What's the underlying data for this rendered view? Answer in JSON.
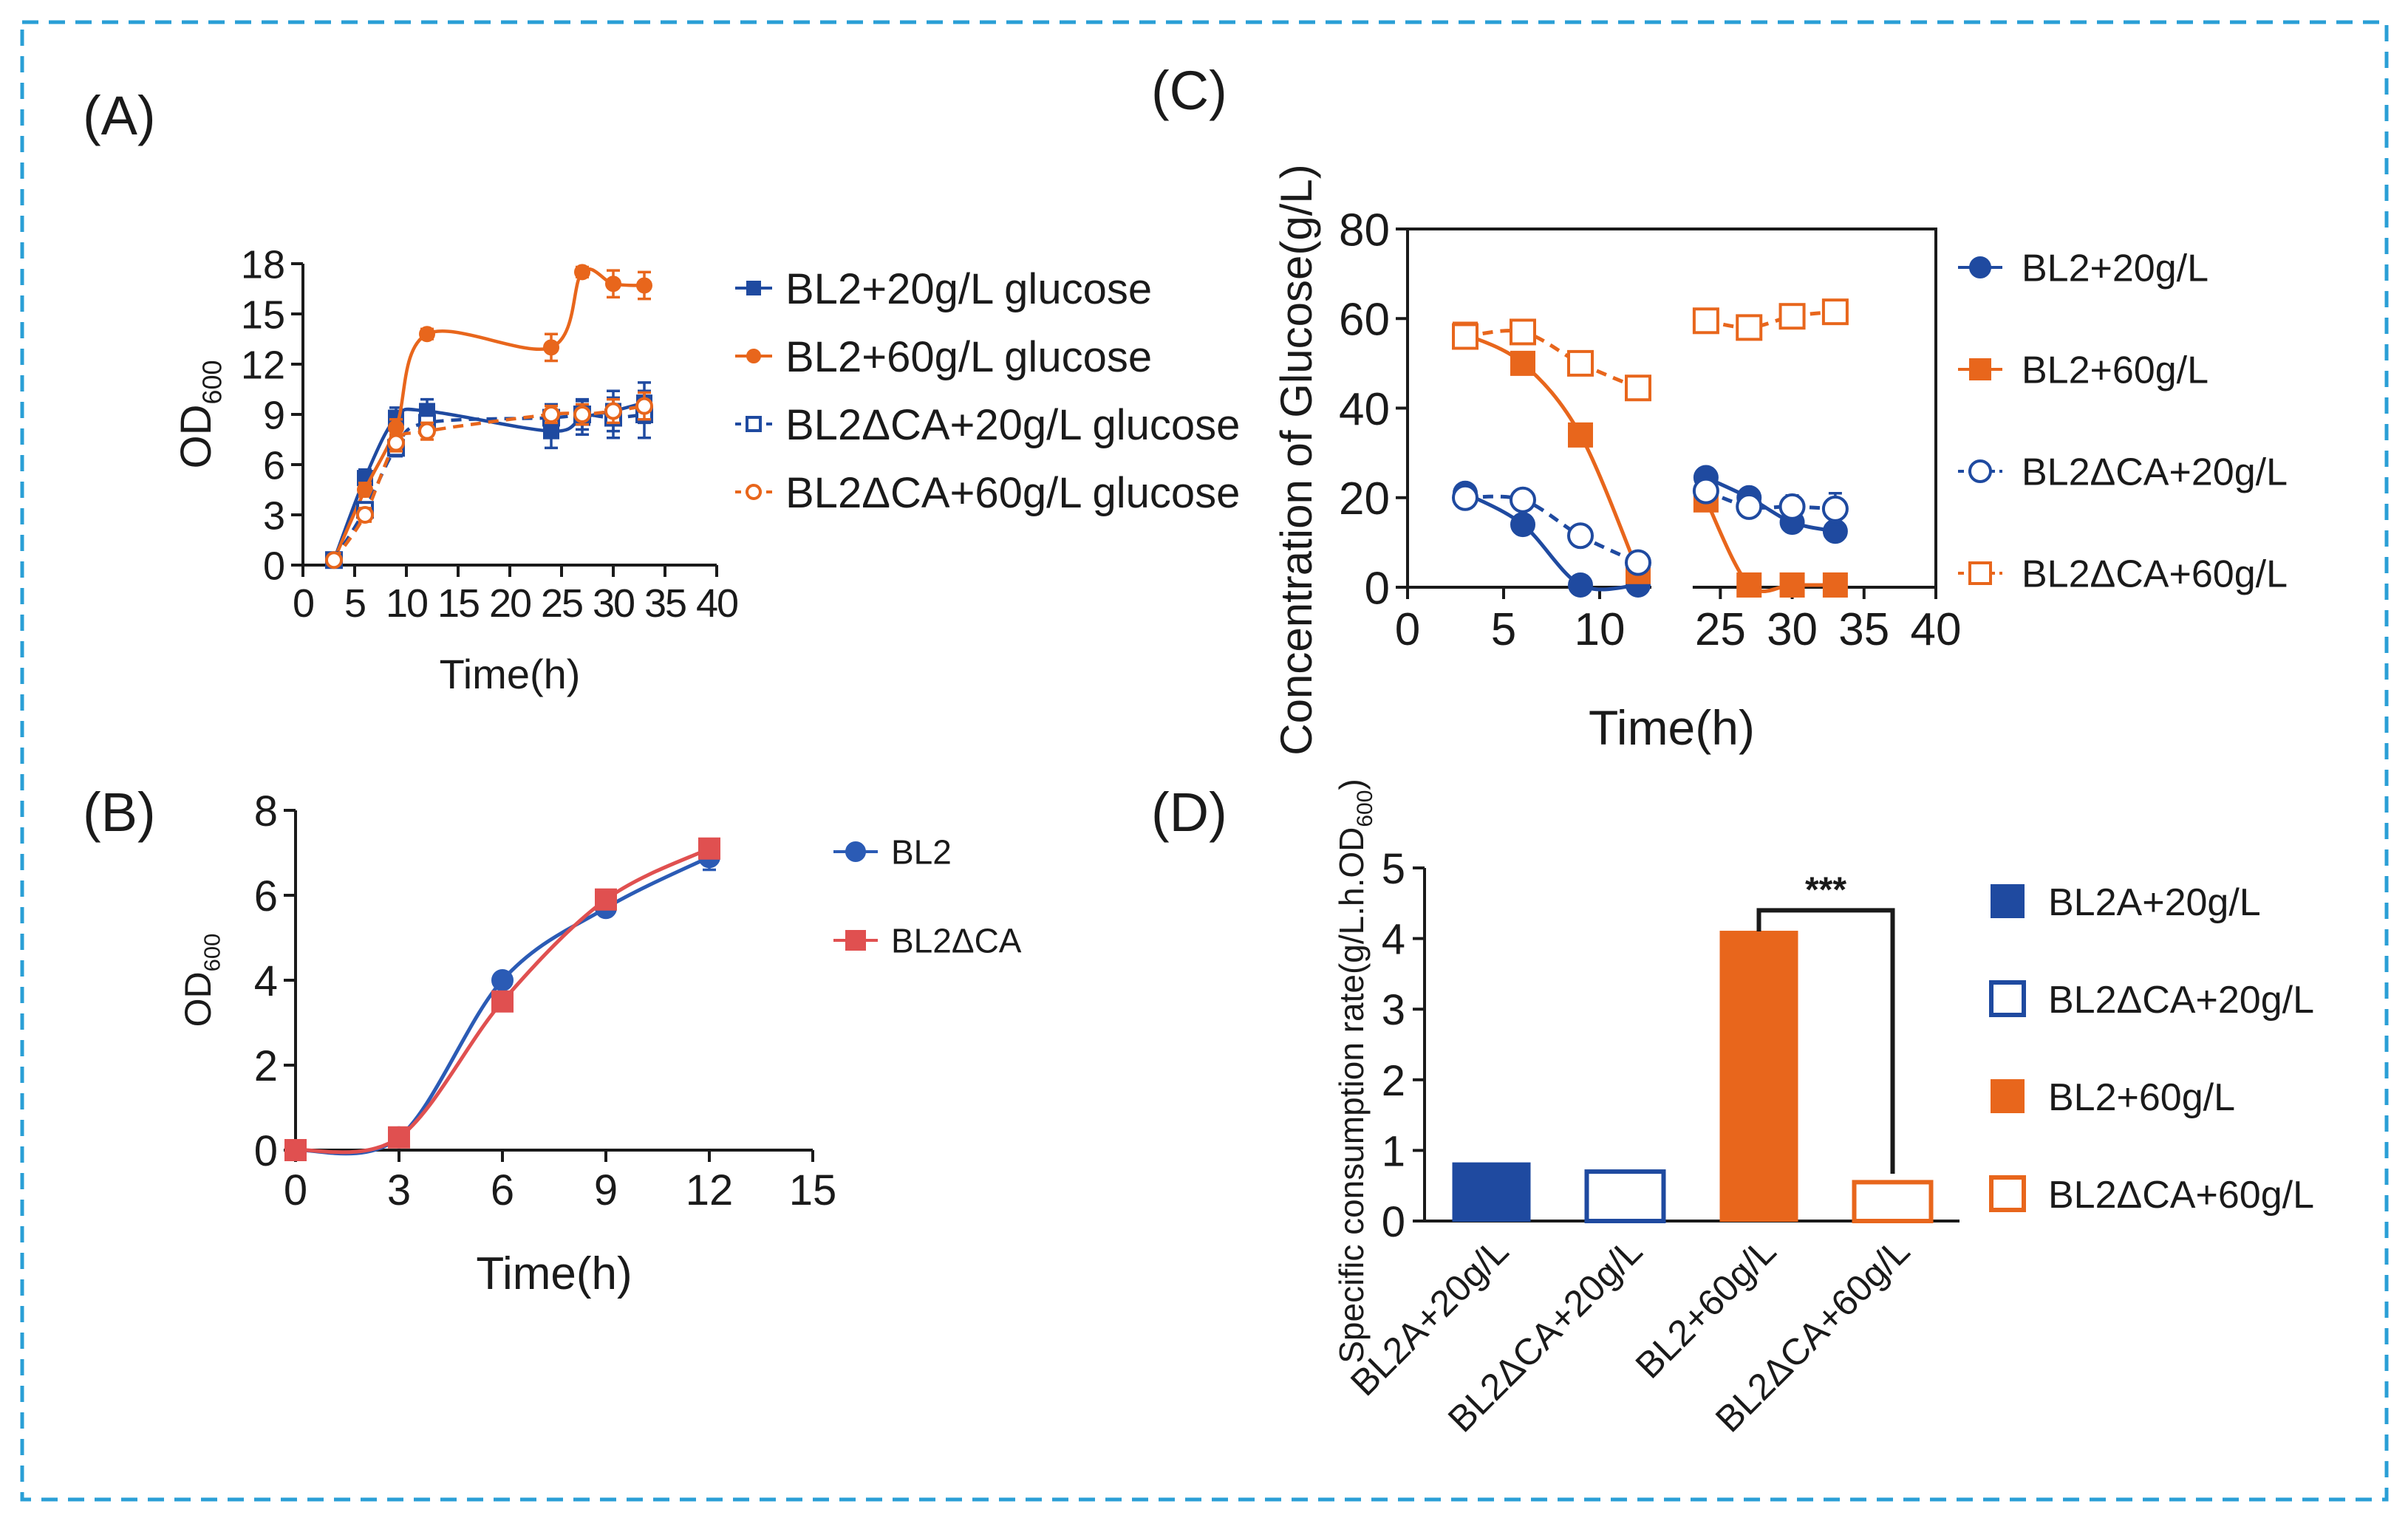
{
  "panels": {
    "a": "(A)",
    "b": "(B)",
    "c": "(C)",
    "d": "(D)"
  },
  "colors": {
    "blue": "#1f4aa0",
    "orange": "#e8661c",
    "blue_b": "#2b5bb5",
    "red_b": "#e05050",
    "frame": "#2a9fd6"
  },
  "chart_data": [
    {
      "id": "A",
      "type": "line",
      "title": "",
      "xlabel": "Time(h)",
      "ylabel": "OD",
      "ylabel_sub": "600",
      "xlim": [
        0,
        40
      ],
      "ylim": [
        0,
        18
      ],
      "xticks": [
        0,
        5,
        10,
        15,
        20,
        25,
        30,
        35,
        40
      ],
      "xtick_labels": [
        "0",
        "5",
        "10",
        "15",
        "20",
        "25",
        "30",
        "35",
        "40"
      ],
      "yticks": [
        0,
        3,
        6,
        9,
        12,
        15,
        18
      ],
      "series": [
        {
          "name": "BL2+20g/L glucose",
          "marker": "square-filled",
          "color": "blue",
          "dashed": false,
          "x": [
            3,
            6,
            9,
            12,
            24,
            27,
            30,
            33
          ],
          "y": [
            0.3,
            5.2,
            8.8,
            9.2,
            8.0,
            8.8,
            9.2,
            9.7
          ],
          "err": [
            0.3,
            0.5,
            0.6,
            0.7,
            1.0,
            1.0,
            1.2,
            1.2
          ]
        },
        {
          "name": "BL2+60g/L glucose",
          "marker": "circle-filled",
          "color": "orange",
          "dashed": false,
          "x": [
            3,
            6,
            9,
            12,
            24,
            27,
            30,
            33
          ],
          "y": [
            0.3,
            4.5,
            8.2,
            13.8,
            13.0,
            17.5,
            16.8,
            16.7
          ],
          "err": [
            0.2,
            0.4,
            0.5,
            0.3,
            0.8,
            0.3,
            0.8,
            0.8
          ]
        },
        {
          "name": "BL2ΔCA+20g/L glucose",
          "marker": "square-open",
          "color": "blue",
          "dashed": true,
          "x": [
            3,
            6,
            9,
            12,
            24,
            27,
            30,
            33
          ],
          "y": [
            0.3,
            3.3,
            7.0,
            8.5,
            8.8,
            9.0,
            8.8,
            9.0
          ],
          "err": [
            0.2,
            0.4,
            0.5,
            0.6,
            0.8,
            0.9,
            1.2,
            1.4
          ]
        },
        {
          "name": "BL2ΔCA+60g/L glucose",
          "marker": "circle-open",
          "color": "orange",
          "dashed": true,
          "x": [
            3,
            6,
            9,
            12,
            24,
            27,
            30,
            33
          ],
          "y": [
            0.3,
            3.0,
            7.3,
            8.0,
            9.0,
            9.0,
            9.2,
            9.5
          ],
          "err": [
            0.2,
            0.4,
            0.5,
            0.5,
            0.5,
            0.6,
            0.7,
            0.8
          ]
        }
      ],
      "legend": [
        "BL2+20g/L glucose",
        "BL2+60g/L glucose",
        "BL2ΔCA+20g/L glucose",
        "BL2ΔCA+60g/L glucose"
      ]
    },
    {
      "id": "B",
      "type": "line",
      "title": "",
      "xlabel": "Time(h)",
      "ylabel": "OD",
      "ylabel_sub": "600",
      "xlim": [
        0,
        15
      ],
      "ylim": [
        0,
        8
      ],
      "xticks": [
        0,
        3,
        6,
        9,
        12,
        15
      ],
      "yticks": [
        0,
        2,
        4,
        6,
        8
      ],
      "series": [
        {
          "name": "BL2",
          "marker": "circle-filled",
          "color": "blue_b",
          "x": [
            0,
            3,
            6,
            9,
            12
          ],
          "y": [
            0.0,
            0.3,
            4.0,
            5.7,
            6.9
          ],
          "err": [
            0.1,
            0.1,
            0.1,
            0.1,
            0.3
          ]
        },
        {
          "name": "BL2ΔCA",
          "marker": "square-filled",
          "color": "red_b",
          "x": [
            0,
            3,
            6,
            9,
            12
          ],
          "y": [
            0.0,
            0.3,
            3.5,
            5.9,
            7.1
          ],
          "err": [
            0.1,
            0.1,
            0.1,
            0.1,
            0.1
          ]
        }
      ],
      "legend": [
        "BL2",
        "BL2ΔCA"
      ]
    },
    {
      "id": "C",
      "type": "line",
      "title": "",
      "xlabel": "Time(h)",
      "ylabel": "Concentration of Glucose(g/L)",
      "xlim": [
        0,
        40
      ],
      "ylim": [
        0,
        80
      ],
      "xaxis_break": [
        12,
        24
      ],
      "xticks": [
        0,
        5,
        10,
        25,
        30,
        35,
        40
      ],
      "yticks": [
        0,
        20,
        40,
        60,
        80
      ],
      "series": [
        {
          "name": "BL2+20g/L",
          "marker": "circle-filled",
          "color": "blue",
          "dashed": false,
          "x": [
            3,
            6,
            9,
            12,
            24,
            27,
            30,
            33
          ],
          "y": [
            21,
            14,
            0.5,
            0.5,
            24.5,
            20,
            14.5,
            12.5
          ],
          "err": [
            0,
            0,
            0,
            0,
            0,
            0,
            0,
            0
          ]
        },
        {
          "name": "BL2+60g/L",
          "marker": "square-filled",
          "color": "orange",
          "dashed": false,
          "x": [
            3,
            6,
            9,
            12,
            24,
            27,
            30,
            33
          ],
          "y": [
            56.5,
            50,
            34,
            3.5,
            19.5,
            0.5,
            0.5,
            0.5
          ],
          "err": [
            0,
            0,
            0,
            0,
            0,
            0,
            0,
            0
          ]
        },
        {
          "name": "BL2ΔCA+20g/L",
          "marker": "circle-open",
          "color": "blue",
          "dashed": true,
          "x": [
            3,
            6,
            9,
            12,
            24,
            27,
            30,
            33
          ],
          "y": [
            20,
            19.5,
            11.5,
            5.5,
            21.5,
            18,
            18,
            17.5
          ],
          "err": [
            0,
            0,
            0,
            0,
            0,
            0,
            2.5,
            3.5
          ]
        },
        {
          "name": "BL2ΔCA+60g/L",
          "marker": "square-open",
          "color": "orange",
          "dashed": true,
          "x": [
            3,
            6,
            9,
            12,
            24,
            27,
            30,
            33
          ],
          "y": [
            56,
            57,
            50,
            44.5,
            59.5,
            58,
            60.5,
            61.5
          ],
          "err": [
            0,
            0,
            0,
            2.5,
            0,
            0,
            2,
            1.5
          ]
        }
      ],
      "legend": [
        "BL2+20g/L",
        "BL2+60g/L",
        "BL2ΔCA+20g/L",
        "BL2ΔCA+60g/L"
      ]
    },
    {
      "id": "D",
      "type": "bar",
      "title": "",
      "xlabel": "",
      "ylabel": "Specific consumption rate(g/L.h.OD",
      "ylabel_sub": "600",
      "ylabel_end": ")",
      "ylim": [
        0,
        5
      ],
      "yticks": [
        0,
        1,
        2,
        3,
        4,
        5
      ],
      "categories": [
        "BL2A+20g/L",
        "BL2ΔCA+20g/L",
        "BL2+60g/L",
        "BL2ΔCA+60g/L"
      ],
      "values": [
        0.82,
        0.7,
        4.1,
        0.55
      ],
      "bar_styles": [
        {
          "fill": "blue",
          "open": false
        },
        {
          "fill": "blue",
          "open": true
        },
        {
          "fill": "orange",
          "open": false
        },
        {
          "fill": "orange",
          "open": true
        }
      ],
      "significance": {
        "between": [
          2,
          3
        ],
        "label": "***"
      },
      "legend": [
        "BL2A+20g/L",
        "BL2ΔCA+20g/L",
        "BL2+60g/L",
        "BL2ΔCA+60g/L"
      ]
    }
  ]
}
